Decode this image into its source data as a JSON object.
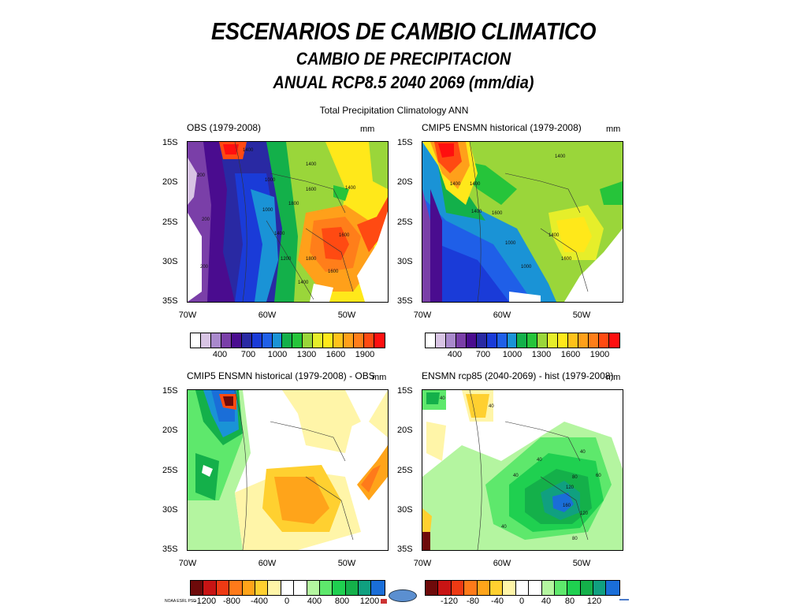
{
  "header": {
    "title": "ESCENARIOS DE CAMBIO CLIMATICO",
    "subtitle1": "CAMBIO DE PRECIPITACION",
    "subtitle2": "ANUAL RCP8.5 2040 2069 (mm/dia)"
  },
  "figure_title": "Total Precipitation Climatology ANN",
  "panels": [
    {
      "title": "OBS (1979-2008)",
      "unit": "mm"
    },
    {
      "title": "CMIP5 ENSMN historical (1979-2008)",
      "unit": "mm"
    },
    {
      "title": "CMIP5 ENSMN historical (1979-2008) - OBS",
      "unit": "mm"
    },
    {
      "title": "ENSMN rcp85 (2040-2069) - hist (1979-2008)",
      "unit": "mm"
    }
  ],
  "axes": {
    "y_ticks": [
      "15S",
      "20S",
      "25S",
      "30S",
      "35S"
    ],
    "x_ticks": [
      "70W",
      "60W",
      "50W"
    ]
  },
  "colorbars": {
    "climatology": {
      "colors": [
        "#ffffff",
        "#d8c4e4",
        "#a989cc",
        "#7a3fa8",
        "#4a0c8f",
        "#2929a3",
        "#1a3bd8",
        "#1f5fe8",
        "#1a93d6",
        "#13b04a",
        "#26c43a",
        "#9ad63a",
        "#e6ee2a",
        "#ffe81a",
        "#ffc21a",
        "#ffa01a",
        "#ff7e1a",
        "#ff4a12",
        "#ff0f0f"
      ],
      "labels": [
        "400",
        "700",
        "1000",
        "1300",
        "1600",
        "1900"
      ]
    },
    "bias": {
      "colors": [
        "#6e0a0a",
        "#c81414",
        "#ee3a14",
        "#ff7a1a",
        "#ffa41a",
        "#ffd030",
        "#fff5a8",
        "#ffffff",
        "#ffffff",
        "#b4f5a0",
        "#5ee86c",
        "#1fd050",
        "#14b04a",
        "#10a080",
        "#1a6ed8"
      ],
      "labels": [
        "-1200",
        "-800",
        "-400",
        "0",
        "400",
        "800",
        "1200"
      ]
    },
    "change": {
      "colors": [
        "#6e0a0a",
        "#c81414",
        "#ee3a14",
        "#ff7a1a",
        "#ffa41a",
        "#ffd030",
        "#fff5a8",
        "#ffffff",
        "#ffffff",
        "#b4f5a0",
        "#5ee86c",
        "#1fd050",
        "#14b04a",
        "#10a080",
        "#1a6ed8"
      ],
      "labels": [
        "-120",
        "-80",
        "-40",
        "0",
        "40",
        "80",
        "120"
      ]
    }
  },
  "contour_labels": {
    "obs": [
      "1400",
      "1400",
      "1000",
      "1600",
      "1800",
      "1400",
      "1000",
      "1200",
      "1800",
      "1600",
      "1400",
      "1400",
      "1600",
      "200",
      "200",
      "200"
    ],
    "hist": [
      "1400",
      "1400",
      "1400",
      "1400",
      "1000",
      "1600",
      "1400",
      "1600",
      "1000"
    ],
    "rcp": [
      "40",
      "40",
      "40",
      "40",
      "40",
      "60",
      "80",
      "120",
      "160",
      "120",
      "40",
      "80"
    ]
  },
  "logos": {
    "ncl_text": "NOAA ESRL PSD"
  }
}
